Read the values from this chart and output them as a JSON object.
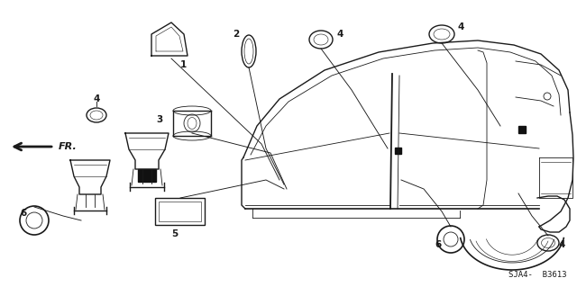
{
  "bg_color": "#ffffff",
  "dark": "#1a1a1a",
  "diagram_code": "SJA4-  B3613",
  "fig_w": 6.4,
  "fig_h": 3.19,
  "dpi": 100
}
